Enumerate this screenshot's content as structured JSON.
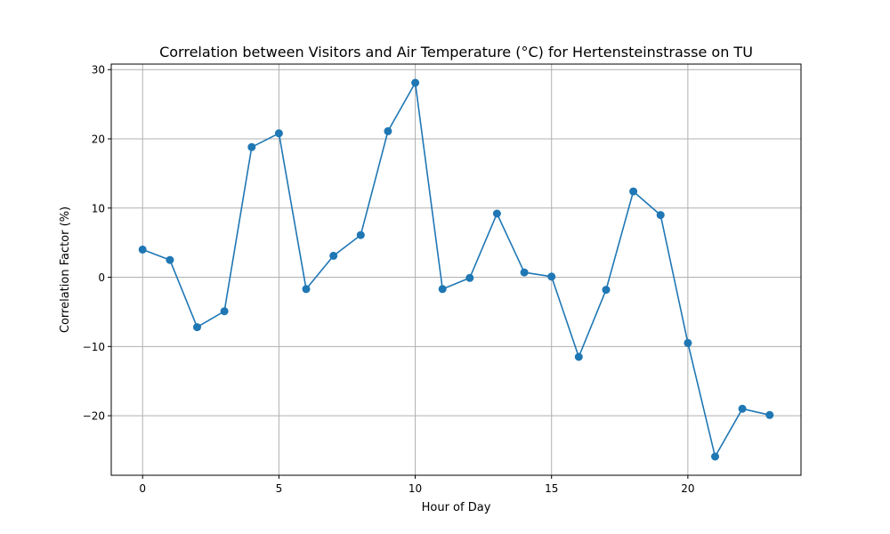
{
  "chart_data": {
    "type": "line",
    "title": "Correlation between Visitors and Air Temperature (°C) for Hertensteinstrasse on TU",
    "xlabel": "Hour of Day",
    "ylabel": "Correlation Factor (%)",
    "x": [
      0,
      1,
      2,
      3,
      4,
      5,
      6,
      7,
      8,
      9,
      10,
      11,
      12,
      13,
      14,
      15,
      16,
      17,
      18,
      19,
      20,
      21,
      22,
      23
    ],
    "series": [
      {
        "values": [
          4.0,
          2.5,
          -7.2,
          -4.9,
          18.8,
          20.8,
          -1.7,
          3.1,
          6.1,
          21.1,
          28.1,
          -1.7,
          -0.1,
          9.2,
          0.7,
          0.1,
          -11.5,
          -1.8,
          12.4,
          9.0,
          -9.5,
          -25.9,
          -19.0,
          -19.9
        ],
        "color": "#1f77b4"
      }
    ],
    "xlim": [
      -1.15,
      24.15
    ],
    "ylim": [
      -28.6,
      30.8
    ],
    "xticks": [
      0,
      5,
      10,
      15,
      20
    ],
    "xtick_labels": [
      "0",
      "5",
      "10",
      "15",
      "20"
    ],
    "yticks": [
      -20,
      -10,
      0,
      10,
      20,
      30
    ],
    "ytick_labels": [
      "−20",
      "−10",
      "0",
      "10",
      "20",
      "30"
    ],
    "grid": true,
    "legend": "none"
  }
}
